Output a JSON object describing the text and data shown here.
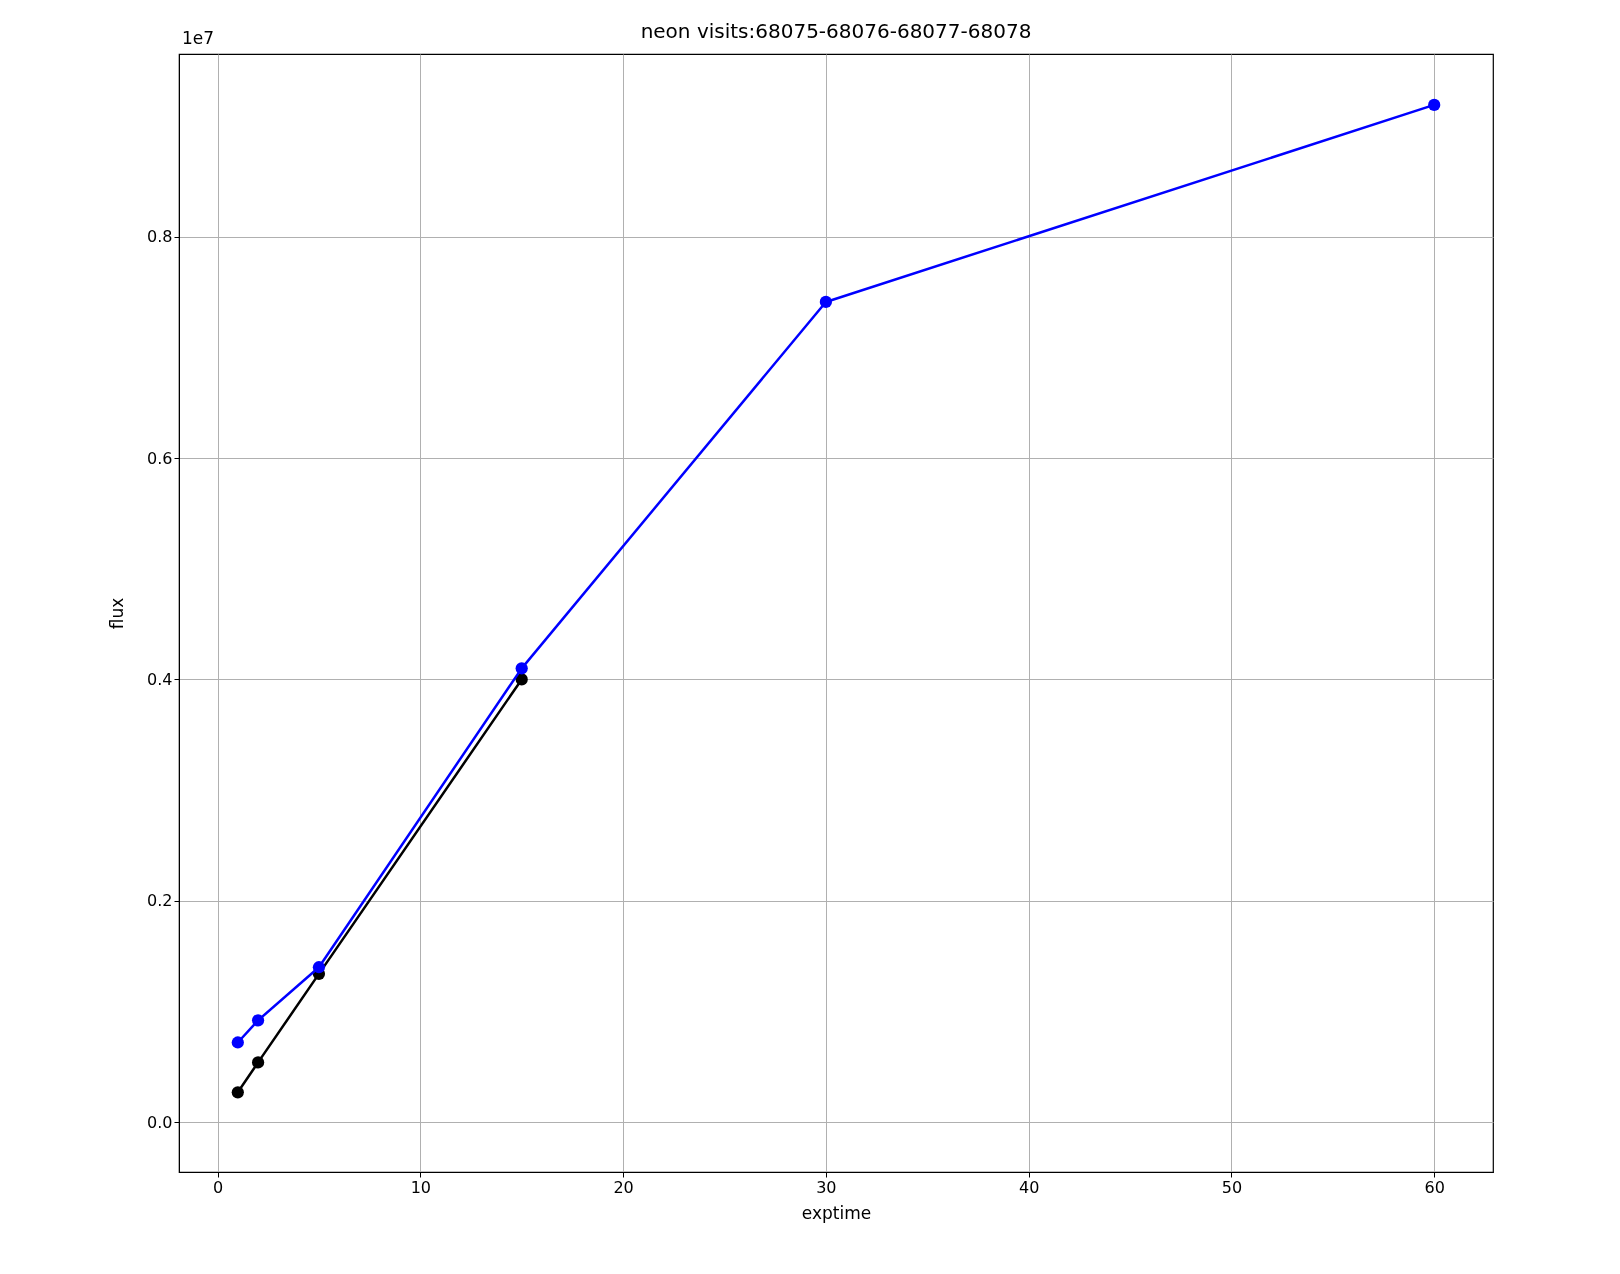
{
  "chart_data": {
    "type": "line",
    "title": "neon  visits:68075-68076-68077-68078",
    "xlabel": "exptime",
    "ylabel": "flux",
    "annotations": [
      "1e7"
    ],
    "series": [
      {
        "color": "#000000",
        "x": [
          1,
          2,
          5,
          15
        ],
        "values": [
          0.027,
          0.054,
          0.134,
          0.4
        ]
      },
      {
        "color": "#0000ff",
        "x": [
          1,
          2,
          5,
          15,
          30,
          60
        ],
        "values": [
          0.072,
          0.092,
          0.14,
          0.41,
          0.741,
          0.919
        ]
      }
    ],
    "xlim": [
      -1.9,
      62.9
    ],
    "ylim": [
      -0.045,
      0.965
    ],
    "xticks": [
      0,
      10,
      20,
      30,
      40,
      50,
      60
    ],
    "yticks": [
      {
        "value": 0,
        "label": "0.0"
      },
      {
        "value": 0.2,
        "label": "0.2"
      },
      {
        "value": 0.4,
        "label": "0.4"
      },
      {
        "value": 0.6,
        "label": "0.6"
      },
      {
        "value": 0.8,
        "label": "0.8"
      }
    ],
    "grid": true,
    "marker": "circle",
    "line_style": "solid"
  }
}
